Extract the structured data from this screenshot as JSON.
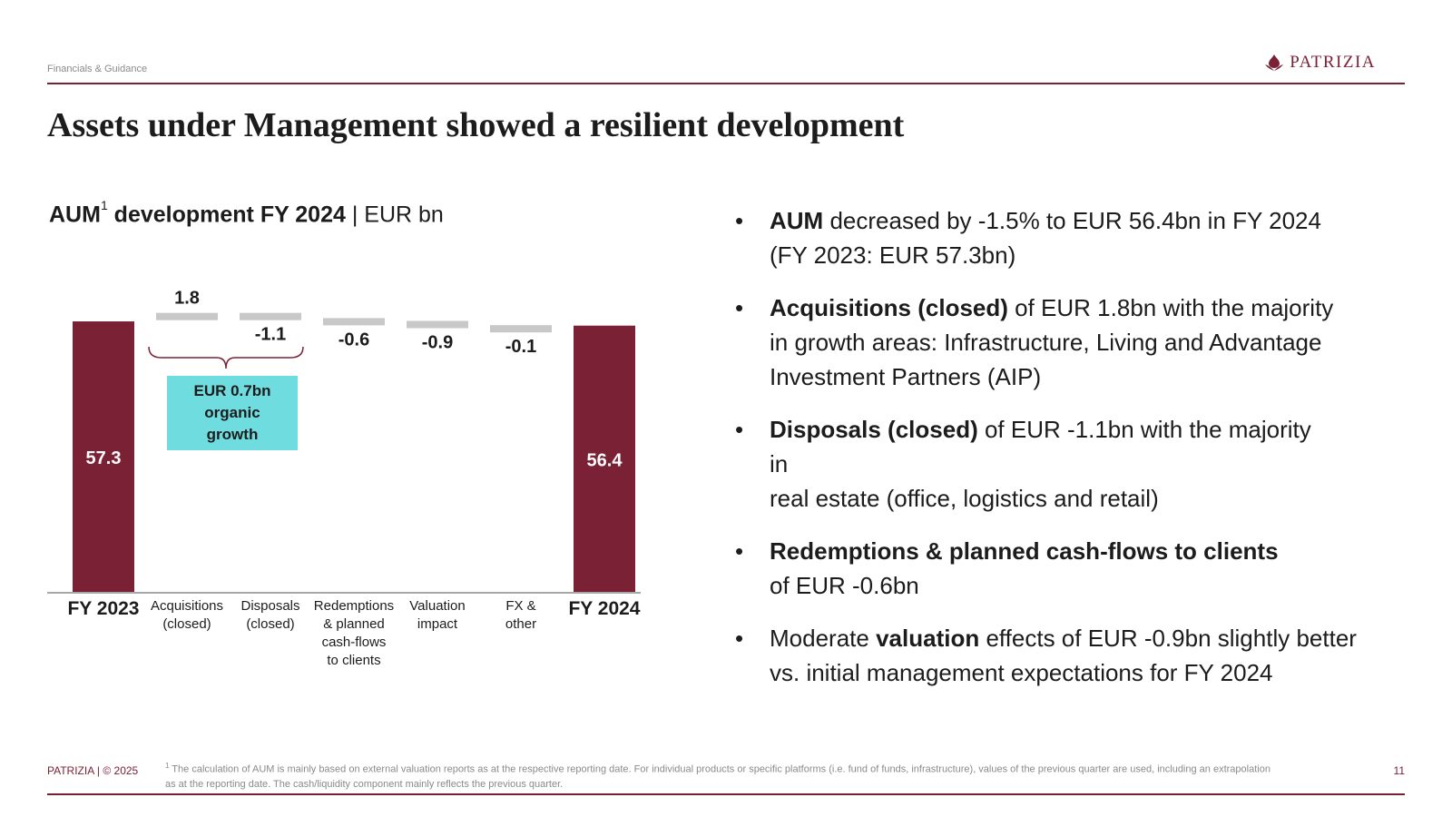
{
  "header": {
    "section": "Financials & Guidance",
    "logo_text": "PATRIZIA",
    "title": "Assets under Management showed a resilient development"
  },
  "chart_heading": {
    "bold": "AUM",
    "sup": "1",
    "rest": " development FY 2024",
    "unit": "| EUR bn"
  },
  "chart_data": {
    "type": "bar",
    "subtype": "waterfall",
    "title": "AUM development FY 2024",
    "unit": "EUR bn",
    "categories": [
      "FY 2023",
      "Acquisitions (closed)",
      "Disposals (closed)",
      "Redemptions & planned cash-flows to clients",
      "Valuation impact",
      "FX & other",
      "FY 2024"
    ],
    "category_lines": [
      [
        "FY 2023"
      ],
      [
        "Acquisitions",
        "(closed)"
      ],
      [
        "Disposals",
        "(closed)"
      ],
      [
        "Redemptions",
        "& planned",
        "cash-flows",
        "to clients"
      ],
      [
        "Valuation",
        "impact"
      ],
      [
        "FX &",
        "other"
      ],
      [
        "FY 2024"
      ]
    ],
    "values": [
      57.3,
      1.8,
      -1.1,
      -0.6,
      -0.9,
      -0.1,
      56.4
    ],
    "value_labels": [
      "57.3",
      "1.8",
      "-1.1",
      "-0.6",
      "-0.9",
      "-0.1",
      "56.4"
    ],
    "kinds": [
      "total",
      "delta",
      "delta",
      "delta",
      "delta",
      "delta",
      "total"
    ],
    "annotation": {
      "lines": [
        "EUR 0.7bn",
        "organic",
        "growth"
      ],
      "spans": [
        "Acquisitions (closed)",
        "Disposals (closed)"
      ]
    }
  },
  "colors": {
    "brand": "#7a2136",
    "total_bar": "#7a2136",
    "delta_bar": "#c8c8c8",
    "callout": "#6fdce0"
  },
  "bullets": [
    {
      "bold": "AUM",
      "rest": " decreased by -1.5% to EUR 56.4bn in FY 2024",
      "lines": [
        "(FY 2023: EUR 57.3bn)"
      ]
    },
    {
      "bold": "Acquisitions (closed)",
      "rest": " of EUR  1.8bn with the majority",
      "lines": [
        "in growth areas: Infrastructure, Living and Advantage",
        "Investment Partners (AIP)"
      ]
    },
    {
      "bold": "Disposals (closed)",
      "rest": " of EUR -1.1bn with the majority",
      "lines": [
        "in",
        "real estate (office, logistics and retail)"
      ]
    },
    {
      "bold": "Redemptions & planned cash-flows to clients",
      "rest": "",
      "lines": [
        "of EUR -0.6bn"
      ]
    },
    {
      "pre": "Moderate ",
      "bold": "valuation",
      "rest": " effects of EUR -0.9bn slightly better",
      "lines": [
        "vs. initial management expectations for FY 2024"
      ]
    }
  ],
  "footer": {
    "left": "PATRIZIA | © 2025",
    "footnote_sup": "1",
    "footnote": " The calculation of AUM is mainly based on external valuation reports as at the respective reporting date. For individual products or specific platforms (i.e. fund of funds, infrastructure), values of the previous quarter are used, including an extrapolation as at the reporting date. The cash/liquidity component mainly reflects the previous quarter.",
    "page_number": "11"
  }
}
